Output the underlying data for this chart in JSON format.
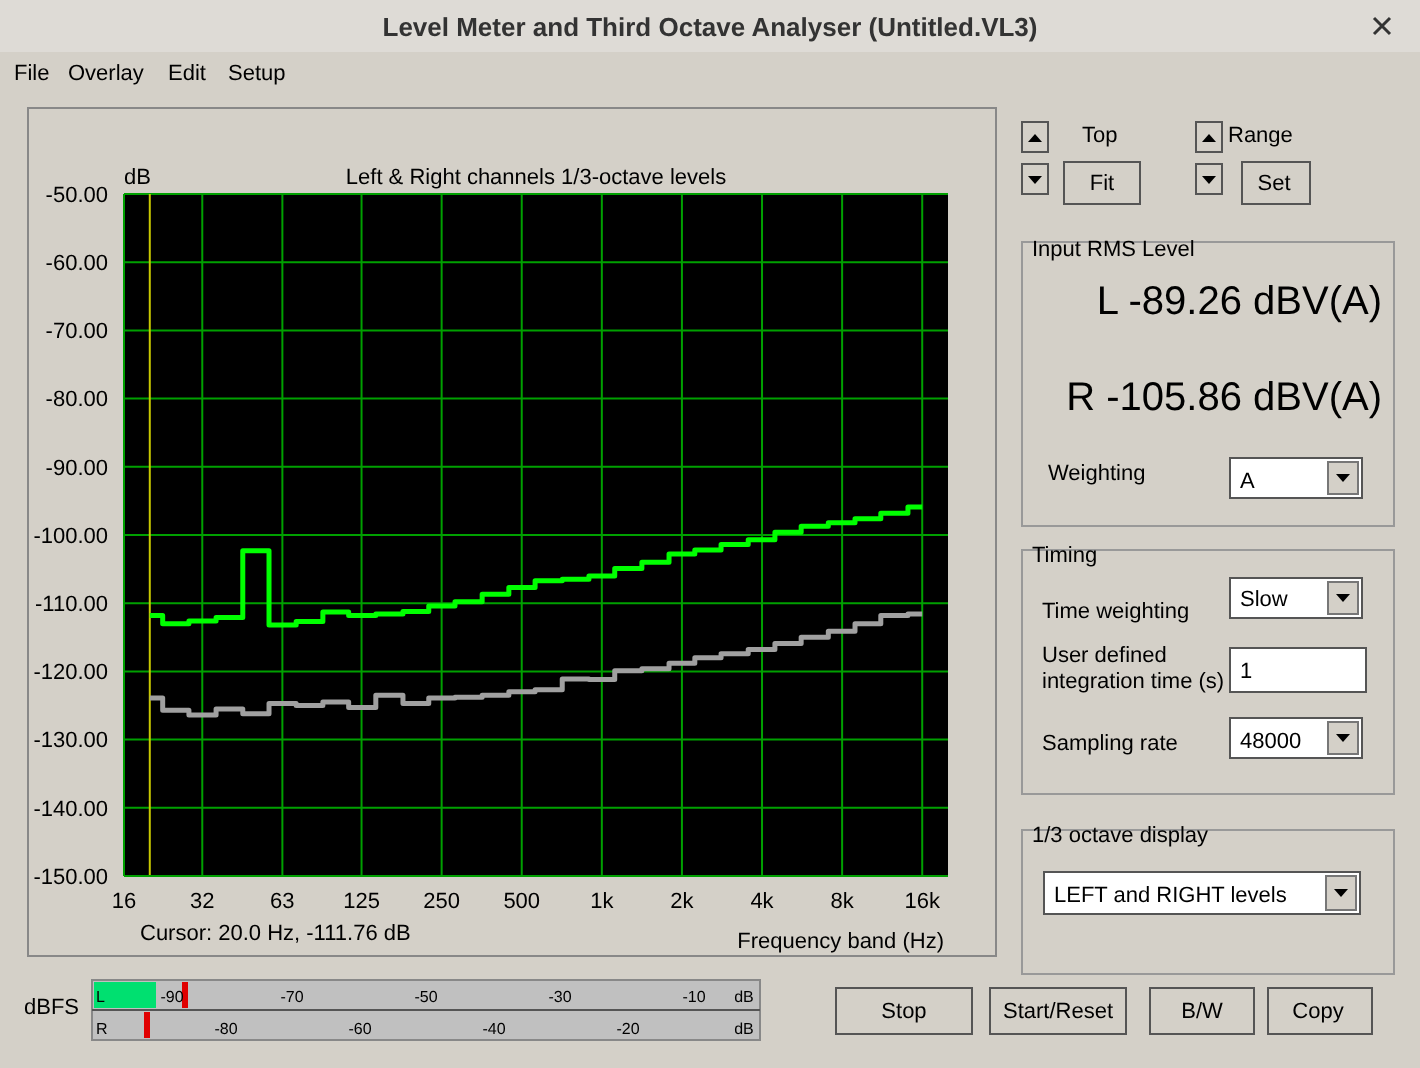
{
  "chart_data": {
    "type": "step",
    "title": "Level Meter and Third Octave Analyser (Untitled.VL3)",
    "subtitle": "Left & Right channels 1/3-octave levels",
    "ylabel": "dB",
    "xlabel": "Frequency band (Hz)",
    "log": "x",
    "grid": true,
    "marker": "none",
    "line_style": "solid",
    "x": [
      20,
      25,
      31.5,
      40,
      50,
      63,
      80,
      100,
      125,
      160,
      200,
      250,
      315,
      400,
      500,
      630,
      800,
      1000,
      1250,
      1600,
      2000,
      2500,
      3150,
      4000,
      5000,
      6300,
      8000,
      10000,
      12500,
      16000
    ],
    "series": [
      {
        "color": "#00ff00",
        "values": [
          -111.8,
          -113.0,
          -112.6,
          -112.1,
          -102.3,
          -113.2,
          -112.7,
          -111.3,
          -111.8,
          -111.6,
          -111.2,
          -110.4,
          -109.8,
          -108.7,
          -107.7,
          -106.7,
          -106.5,
          -106.0,
          -104.9,
          -104.0,
          -102.8,
          -102.2,
          -101.4,
          -100.7,
          -99.6,
          -98.7,
          -98.2,
          -97.6,
          -96.8,
          -95.9
        ]
      },
      {
        "color": "#a0a0a0",
        "values": [
          -123.9,
          -125.7,
          -126.4,
          -125.5,
          -126.2,
          -124.7,
          -125.0,
          -124.5,
          -125.3,
          -123.5,
          -124.7,
          -123.9,
          -123.8,
          -123.5,
          -123.0,
          -122.7,
          -121.1,
          -121.2,
          -119.9,
          -119.6,
          -118.8,
          -118.0,
          -117.4,
          -116.8,
          -115.9,
          -115.0,
          -114.1,
          -113.0,
          -111.8,
          -111.6
        ]
      }
    ],
    "xlim": [
      16,
      20000
    ],
    "xticks": [
      16,
      {
        "value": 31.5,
        "label": "32"
      },
      63,
      125,
      250,
      500,
      {
        "value": 1000,
        "label": "1k"
      },
      {
        "value": 2000,
        "label": "2k"
      },
      {
        "value": 4000,
        "label": "4k"
      },
      {
        "value": 8000,
        "label": "8k"
      },
      {
        "value": 16000,
        "label": "16k"
      }
    ],
    "ylim": [
      -150,
      -50
    ],
    "yticks": [
      {
        "value": -150,
        "label": "-150.00"
      },
      {
        "value": -140,
        "label": "-140.00"
      },
      {
        "value": -130,
        "label": "-130.00"
      },
      {
        "value": -120,
        "label": "-120.00"
      },
      {
        "value": -110,
        "label": "-110.00"
      },
      {
        "value": -100,
        "label": "-100.00"
      },
      {
        "value": -90,
        "label": "-90.00"
      },
      {
        "value": -80,
        "label": "-80.00"
      },
      {
        "value": -70,
        "label": "-70.00"
      },
      {
        "value": -60,
        "label": "-60.00"
      },
      {
        "value": -50,
        "label": "-50.00"
      }
    ],
    "ref_lines": [
      {
        "axis": "x",
        "value": 20,
        "color": "#c8c800"
      }
    ],
    "annotations": [
      "Cursor:   20.0 Hz, -111.76 dB",
      "File",
      "Overlay",
      "Edit",
      "Setup",
      "Top",
      "Fit",
      "Range",
      "Set",
      "Input RMS Level",
      "L -89.26 dBV(A)",
      "R -105.86 dBV(A)",
      "Weighting",
      "A",
      "Timing",
      "Time weighting",
      "Slow",
      "User defined",
      "integration time (s)",
      "1",
      "Sampling rate",
      "48000",
      "1/3 octave display",
      "LEFT and RIGHT levels",
      "Stop",
      "Start/Reset",
      "B/W",
      "Copy",
      "dBFS",
      "L",
      "-90",
      "-70",
      "-50",
      "-30",
      "-10",
      "dB",
      "R",
      "-80",
      "-60",
      "-40",
      "-20",
      "dB"
    ]
  }
}
